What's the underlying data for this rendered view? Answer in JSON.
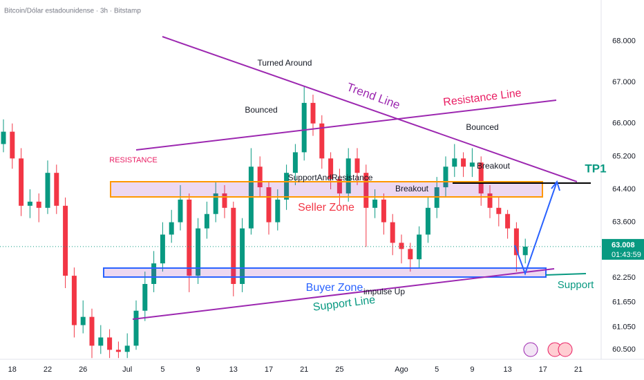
{
  "chart_data": {
    "type": "candlestick",
    "title": "Bitcoin/Dólar estadounidense · 3h · Bitstamp",
    "categories": [
      null,
      "18",
      null,
      null,
      null,
      "22",
      null,
      null,
      null,
      "26",
      null,
      null,
      null,
      null,
      "Jul",
      null,
      null,
      null,
      "5",
      null,
      null,
      null,
      "9",
      null,
      null,
      null,
      "13",
      null,
      null,
      null,
      "17",
      null,
      null,
      null,
      "21",
      null,
      null,
      null,
      "25",
      null,
      null,
      null,
      null,
      null,
      null,
      "Ago",
      null,
      null,
      null,
      "5",
      null,
      null,
      null,
      "9",
      null,
      null,
      null,
      "13",
      null,
      null,
      null,
      "17",
      null,
      null,
      null,
      "21",
      null
    ],
    "open": [
      65500,
      65800,
      65150,
      64000,
      64100,
      63950,
      64800,
      64000,
      62300,
      61100,
      61300,
      60600,
      60800,
      60500,
      60450,
      60600,
      61450,
      62100,
      62600,
      63300,
      63600,
      64150,
      62300,
      63450,
      63800,
      64300,
      63950,
      62100,
      63450,
      64950,
      64450,
      63600,
      64150,
      64800,
      65300,
      66500,
      66000,
      65150,
      64650,
      64300,
      65150,
      64800,
      63950,
      64150,
      63600,
      63100,
      62950,
      62700,
      63300,
      63950,
      64450,
      64950,
      65150,
      64950,
      65050,
      64300,
      63950,
      63800,
      63450,
      62800,
      null,
      null,
      null,
      null,
      null,
      null,
      null
    ],
    "high": [
      66100,
      66000,
      65400,
      64400,
      64300,
      65100,
      65000,
      64200,
      62500,
      61700,
      61500,
      61100,
      61000,
      60700,
      60900,
      61700,
      62400,
      62900,
      63600,
      63900,
      64500,
      64300,
      63700,
      64100,
      64600,
      64500,
      64100,
      63700,
      65400,
      65200,
      64600,
      64400,
      65000,
      65500,
      66900,
      66700,
      66200,
      65300,
      64900,
      65400,
      65400,
      65000,
      64400,
      64300,
      63800,
      63300,
      63100,
      63500,
      64200,
      64700,
      65200,
      65500,
      65300,
      65400,
      65200,
      64500,
      64200,
      63900,
      63600,
      63200,
      null,
      null,
      null,
      null,
      null,
      null,
      null
    ],
    "low": [
      65300,
      64900,
      63750,
      63700,
      63600,
      63800,
      63800,
      62000,
      60800,
      60900,
      60300,
      60400,
      60300,
      60300,
      60300,
      60500,
      61200,
      61900,
      62400,
      63100,
      63400,
      61900,
      62100,
      63200,
      63600,
      63700,
      61800,
      61900,
      63300,
      64200,
      63300,
      63400,
      63900,
      64500,
      65100,
      65700,
      64900,
      64400,
      64000,
      64100,
      64500,
      63000,
      63700,
      63300,
      62800,
      62600,
      62400,
      62500,
      63100,
      63700,
      64200,
      64700,
      64700,
      64700,
      64000,
      63700,
      63500,
      63200,
      62400,
      62600,
      null,
      null,
      null,
      null,
      null,
      null,
      null
    ],
    "close": [
      65800,
      65150,
      64000,
      64100,
      63950,
      64800,
      64000,
      62300,
      61100,
      61300,
      60600,
      60800,
      60500,
      60450,
      60600,
      61450,
      62100,
      62600,
      63300,
      63600,
      64150,
      62300,
      63450,
      63800,
      64300,
      63950,
      62100,
      63450,
      64950,
      64450,
      63600,
      64150,
      64800,
      65300,
      66500,
      66000,
      65150,
      64650,
      64300,
      65150,
      64800,
      63950,
      64150,
      63600,
      63100,
      62950,
      62700,
      63300,
      63950,
      64450,
      64950,
      65150,
      64950,
      65050,
      64300,
      63950,
      63800,
      63450,
      62800,
      63008,
      null,
      null,
      null,
      null,
      null,
      null,
      null
    ],
    "up_color": "#089981",
    "down_color": "#f23645",
    "ylim": [
      60270,
      69000
    ],
    "yticks": [
      {
        "value": 68000,
        "label": "68.000"
      },
      {
        "value": 67000,
        "label": "67.000"
      },
      {
        "value": 66000,
        "label": "66.000"
      },
      {
        "value": 65200,
        "label": "65.200"
      },
      {
        "value": 64400,
        "label": "64.400"
      },
      {
        "value": 63600,
        "label": "63.600"
      },
      {
        "value": 62250,
        "label": "62.250"
      },
      {
        "value": 61650,
        "label": "61.650"
      },
      {
        "value": 61050,
        "label": "61.050"
      },
      {
        "value": 60500,
        "label": "60.500"
      }
    ],
    "grid": false,
    "last_price": {
      "value": 63008,
      "label": "63.008"
    },
    "countdown": "01:43:59",
    "annotations": [
      "Turned Around",
      "Bounced",
      "Trend Line",
      "Resistance Line",
      "Bounced",
      "RESISTANCE",
      "Breakout",
      "SupportAndResistance",
      "Breakout",
      "Seller Zone",
      "Buyer Zone",
      "impulse Up",
      "Support Line",
      "Support",
      "TP1"
    ]
  }
}
